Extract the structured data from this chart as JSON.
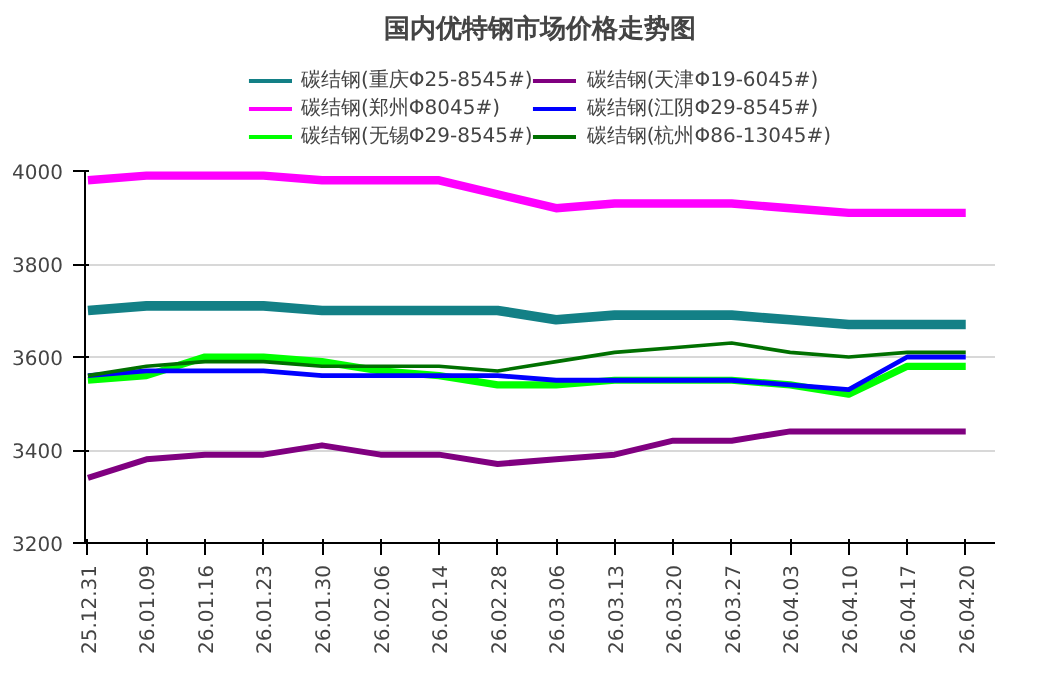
{
  "chart_data": {
    "type": "line",
    "title": "国内优特钢市场价格走势图",
    "categories": [
      "25.12.31",
      "26.01.09",
      "26.01.16",
      "26.01.23",
      "26.01.30",
      "26.02.06",
      "26.02.14",
      "26.02.28",
      "26.03.06",
      "26.03.13",
      "26.03.20",
      "26.03.27",
      "26.04.03",
      "26.04.10",
      "26.04.17",
      "26.04.20"
    ],
    "series": [
      {
        "name": "碳结钢(重庆Φ25-8545#)",
        "color": "#138086",
        "values": [
          3700,
          3710,
          3710,
          3710,
          3700,
          3700,
          3700,
          3700,
          3680,
          3690,
          3690,
          3690,
          3680,
          3670,
          3670,
          3670
        ]
      },
      {
        "name": "碳结钢(郑州Φ8045#)",
        "color": "#ff00ff",
        "values": [
          3980,
          3990,
          3990,
          3990,
          3980,
          3980,
          3980,
          3950,
          3920,
          3930,
          3930,
          3930,
          3920,
          3910,
          3910,
          3910
        ]
      },
      {
        "name": "碳结钢(无锡Φ29-8545#)",
        "color": "#00ff00",
        "values": [
          3550,
          3560,
          3600,
          3600,
          3590,
          3570,
          3560,
          3540,
          3540,
          3550,
          3550,
          3550,
          3540,
          3520,
          3580,
          3580
        ]
      },
      {
        "name": "碳结钢(天津Φ19-6045#)",
        "color": "#800080",
        "values": [
          3340,
          3380,
          3390,
          3390,
          3410,
          3390,
          3390,
          3370,
          3380,
          3390,
          3420,
          3420,
          3440,
          3440,
          3440,
          3440
        ]
      },
      {
        "name": "碳结钢(江阴Φ29-8545#)",
        "color": "#0000ff",
        "values": [
          3560,
          3570,
          3570,
          3570,
          3560,
          3560,
          3560,
          3560,
          3550,
          3550,
          3550,
          3550,
          3540,
          3530,
          3600,
          3600
        ]
      },
      {
        "name": "碳结钢(杭州Φ86-13045#)",
        "color": "#007000",
        "values": [
          3560,
          3580,
          3590,
          3590,
          3580,
          3580,
          3580,
          3570,
          3590,
          3610,
          3620,
          3630,
          3610,
          3600,
          3610,
          3610
        ]
      }
    ],
    "ylim": [
      3200,
      4000
    ],
    "yticks": [
      3200,
      3400,
      3600,
      3800,
      4000
    ],
    "grid": "y",
    "legend": "top",
    "marker": "none",
    "line_style": "solid"
  }
}
